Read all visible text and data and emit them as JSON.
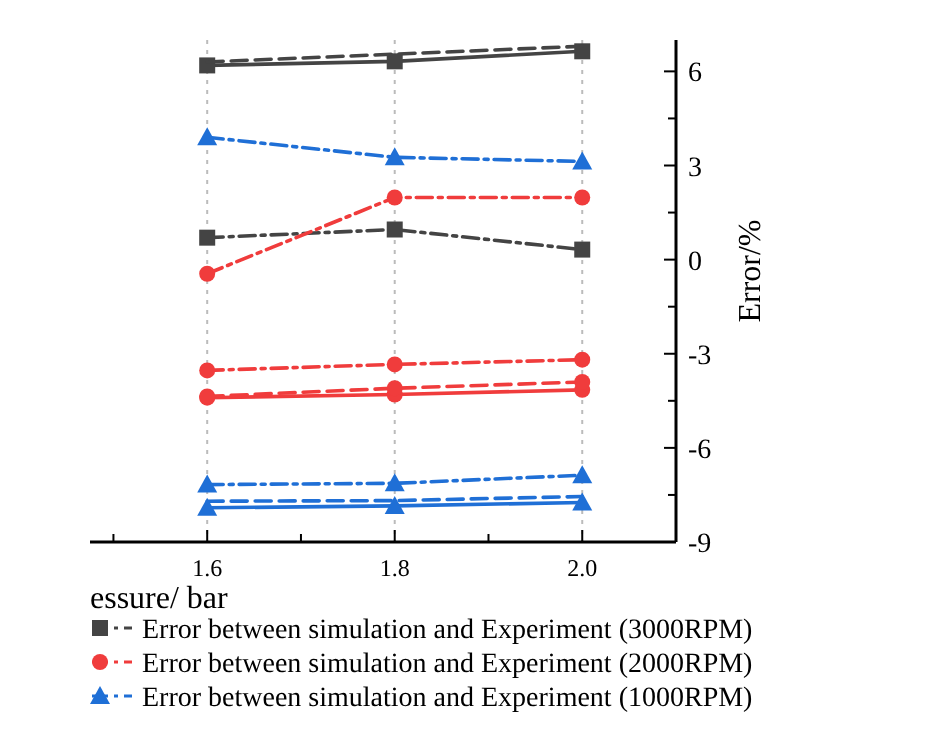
{
  "chart_data": {
    "type": "line",
    "xlabel": "essure/ bar",
    "ylabel": "Error/%",
    "x": [
      1.6,
      1.8,
      2.0
    ],
    "xlim": [
      1.475,
      2.1
    ],
    "xticks": [
      {
        "value": 1.5,
        "label": null
      },
      1.6,
      {
        "value": 1.7,
        "label": null
      },
      1.8,
      {
        "value": 1.9,
        "label": null
      },
      {
        "value": 2.0,
        "label": "2.0"
      }
    ],
    "ylim": [
      -9,
      7
    ],
    "yticks": [
      -9,
      {
        "value": -7.5,
        "label": null
      },
      -6,
      {
        "value": -4.5,
        "label": null
      },
      -3,
      {
        "value": -1.5,
        "label": null
      },
      0,
      {
        "value": 1.5,
        "label": null
      },
      3,
      {
        "value": 4.5,
        "label": null
      },
      6
    ],
    "grid": "x",
    "legend": "bottom",
    "series": [
      {
        "color": "#444444",
        "values": [
          6.19,
          6.32,
          6.64
        ],
        "marker": "square",
        "line_style": "solid"
      },
      {
        "color": "#444444",
        "values": [
          6.3,
          6.55,
          6.8
        ],
        "marker": "none",
        "line_style": "dashed"
      },
      {
        "name": "Error between simulation and Experiment (3000RPM)",
        "color": "#444444",
        "values": [
          0.7,
          0.96,
          0.32
        ],
        "marker": "square",
        "line_style": "dashdot"
      },
      {
        "name": "Error between simulation and Experiment (2000RPM)",
        "color": "#f03c3c",
        "values": [
          -0.45,
          1.98,
          1.98
        ],
        "marker": "circle",
        "line_style": "dashdot"
      },
      {
        "color": "#f03c3c",
        "values": [
          -3.53,
          -3.34,
          -3.19
        ],
        "marker": "circle",
        "line_style": "dashdot"
      },
      {
        "color": "#f03c3c",
        "values": [
          -4.4,
          -4.3,
          -4.15
        ],
        "marker": "circle",
        "line_style": "solid"
      },
      {
        "color": "#f03c3c",
        "values": [
          -4.36,
          -4.1,
          -3.9
        ],
        "marker": "circle",
        "line_style": "dashed"
      },
      {
        "name": "Error between simulation and Experiment (1000RPM)",
        "color": "#1f6fd6",
        "values": [
          3.9,
          3.26,
          3.13
        ],
        "marker": "triangle",
        "line_style": "dashdot"
      },
      {
        "color": "#1f6fd6",
        "values": [
          -7.17,
          -7.13,
          -6.87
        ],
        "marker": "triangle",
        "line_style": "dashdot"
      },
      {
        "color": "#1f6fd6",
        "values": [
          -7.7,
          -7.68,
          -7.55
        ],
        "marker": "none",
        "line_style": "dashed"
      },
      {
        "color": "#1f6fd6",
        "values": [
          -7.91,
          -7.85,
          -7.74
        ],
        "marker": "triangle",
        "line_style": "solid"
      }
    ]
  }
}
